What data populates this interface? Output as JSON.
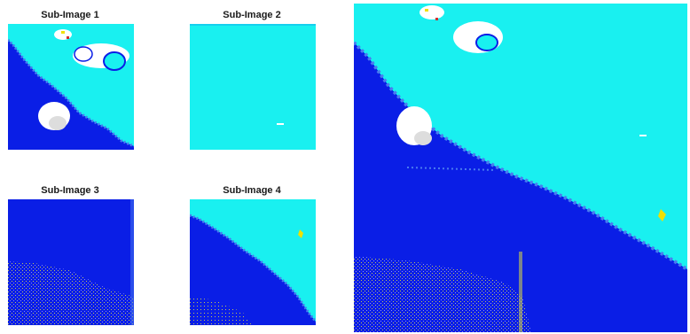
{
  "figure": {
    "panels": [
      {
        "title": "Sub-Image 1"
      },
      {
        "title": "Sub-Image 2"
      },
      {
        "title": "Sub-Image 3"
      },
      {
        "title": "Sub-Image 4"
      }
    ],
    "colors": {
      "water": "#0a1ee6",
      "land": "#19f0f0",
      "cloud": "#ffffff",
      "hotspot": "#f0e000",
      "noise": "#c8c850"
    }
  }
}
